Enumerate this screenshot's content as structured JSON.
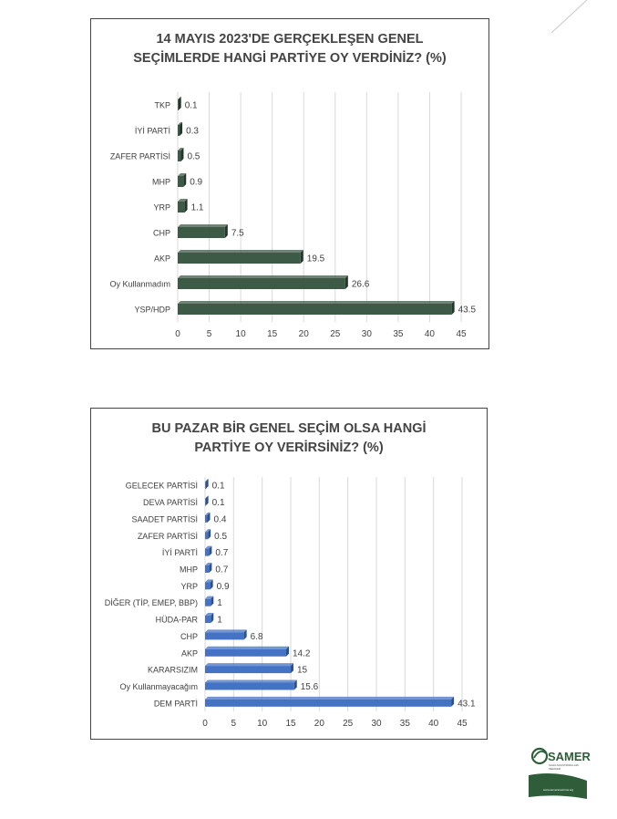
{
  "colors": {
    "chart1_bar": "#3d5a47",
    "chart1_bar_dark": "#22362a",
    "chart2_bar": "#4472c4",
    "chart2_bar_dark": "#2b4f91",
    "grid": "#d9d9d9",
    "text": "#404040"
  },
  "chart_data": [
    {
      "type": "bar",
      "orientation": "horizontal",
      "title_line1": "14 MAYIS 2023'DE GERÇEKLEŞEN GENEL",
      "title_line2": "SEÇİMLERDE HANGİ PARTİYE OY VERDİNİZ? (%)",
      "categories": [
        "TKP",
        "İYİ PARTİ",
        "ZAFER PARTİSİ",
        "MHP",
        "YRP",
        "CHP",
        "AKP",
        "Oy Kullanmadım",
        "YSP/HDP"
      ],
      "values": [
        0.1,
        0.3,
        0.5,
        0.9,
        1.1,
        7.5,
        19.5,
        26.6,
        43.5
      ],
      "value_labels": [
        "0.1",
        "0.3",
        "0.5",
        "0.9",
        "1.1",
        "7.5",
        "19.5",
        "26.6",
        "43.5"
      ],
      "xlim": [
        0,
        45
      ],
      "xticks": [
        "0",
        "5",
        "10",
        "15",
        "20",
        "25",
        "30",
        "35",
        "40",
        "45"
      ],
      "grid": true
    },
    {
      "type": "bar",
      "orientation": "horizontal",
      "title_line1": "BU PAZAR BİR GENEL SEÇİM OLSA HANGİ",
      "title_line2": "PARTİYE OY VERİRSİNİZ? (%)",
      "categories": [
        "GELECEK PARTİSİ",
        "DEVA PARTİSİ",
        "SAADET PARTİSİ",
        "ZAFER PARTİSİ",
        "İYİ PARTİ",
        "MHP",
        "YRP",
        "DİĞER (TİP, EMEP, BBP)",
        "HÜDA-PAR",
        "CHP",
        "AKP",
        "KARARSIZIM",
        "Oy Kullanmayacağım",
        "DEM PARTİ"
      ],
      "values": [
        0.1,
        0.1,
        0.4,
        0.5,
        0.7,
        0.7,
        0.9,
        1,
        1,
        6.8,
        14.2,
        15,
        15.6,
        43.1
      ],
      "value_labels": [
        "0.1",
        "0.1",
        "0.4",
        "0.5",
        "0.7",
        "0.7",
        "0.9",
        "1",
        "1",
        "6.8",
        "14.2",
        "15",
        "15.6",
        "43.1"
      ],
      "xlim": [
        0,
        45
      ],
      "xticks": [
        "0",
        "5",
        "10",
        "15",
        "20",
        "25",
        "30",
        "35",
        "40",
        "45"
      ],
      "grid": true
    }
  ],
  "logo": {
    "name": "SAMER",
    "tagline_1": "SAHA ARAŞTIRMALARI",
    "tagline_2": "MERKEZİ",
    "url": "www.samerarastirma.org"
  }
}
